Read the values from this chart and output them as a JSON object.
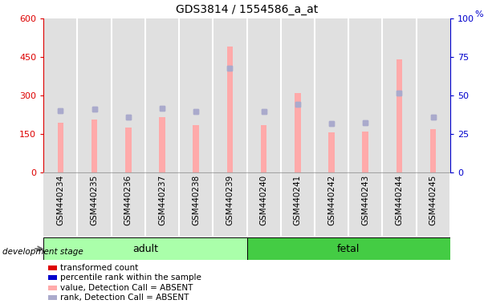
{
  "title": "GDS3814 / 1554586_a_at",
  "categories": [
    "GSM440234",
    "GSM440235",
    "GSM440236",
    "GSM440237",
    "GSM440238",
    "GSM440239",
    "GSM440240",
    "GSM440241",
    "GSM440242",
    "GSM440243",
    "GSM440244",
    "GSM440245"
  ],
  "transformed_count": [
    195,
    205,
    175,
    215,
    185,
    490,
    185,
    310,
    155,
    158,
    440,
    170
  ],
  "percentile_rank": [
    240,
    247,
    215,
    250,
    237,
    405,
    237,
    265,
    192,
    193,
    310,
    215
  ],
  "left_axis_color": "#dd0000",
  "right_axis_color": "#0000cc",
  "bar_color": "#ffaaaa",
  "rank_color": "#aaaacc",
  "ylim_left": [
    0,
    600
  ],
  "ylim_right": [
    0,
    100
  ],
  "yticks_left": [
    0,
    150,
    300,
    450,
    600
  ],
  "yticks_right": [
    0,
    25,
    50,
    75,
    100
  ],
  "adult_color": "#aaffaa",
  "fetal_color": "#44cc44",
  "legend_items": [
    {
      "label": "transformed count",
      "color": "#dd0000"
    },
    {
      "label": "percentile rank within the sample",
      "color": "#0000cc"
    },
    {
      "label": "value, Detection Call = ABSENT",
      "color": "#ffaaaa"
    },
    {
      "label": "rank, Detection Call = ABSENT",
      "color": "#aaaacc"
    }
  ]
}
